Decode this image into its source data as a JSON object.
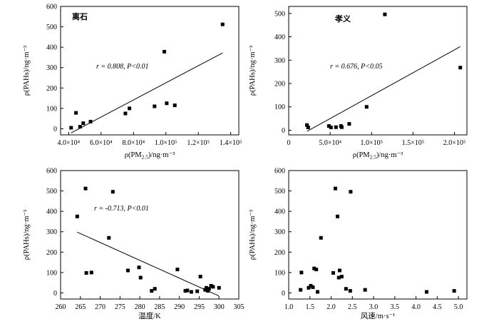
{
  "chart_data": [
    {
      "type": "scatter",
      "title": "离石",
      "xlabel": "ρ(PM2.5)/ng·m⁻³",
      "ylabel": "ρ(PAHs)/ng·m⁻³",
      "annotation": "r = 0.808, P<0.01",
      "xlim": [
        35000,
        145000
      ],
      "ylim": [
        -30,
        600
      ],
      "xticks": [
        40000,
        60000,
        80000,
        100000,
        120000,
        140000
      ],
      "xtick_labels": [
        "4.0×10⁴",
        "6.0×10⁴",
        "8.0×10⁴",
        "1.0×10⁵",
        "1.2×10⁵",
        "1.4×10⁵"
      ],
      "yticks": [
        0,
        100,
        200,
        300,
        400,
        500,
        600
      ],
      "ytick_labels": [
        "0",
        "100",
        "200",
        "300",
        "400",
        "500",
        "600"
      ],
      "points": [
        [
          41500,
          5
        ],
        [
          44500,
          78
        ],
        [
          47000,
          10
        ],
        [
          49000,
          27
        ],
        [
          53500,
          35
        ],
        [
          75000,
          75
        ],
        [
          77500,
          100
        ],
        [
          93000,
          110
        ],
        [
          99000,
          378
        ],
        [
          100500,
          125
        ],
        [
          105500,
          115
        ],
        [
          135000,
          512
        ]
      ],
      "trendline": [
        [
          41500,
          -20
        ],
        [
          135000,
          372
        ]
      ]
    },
    {
      "type": "scatter",
      "title": "孝义",
      "xlabel": "ρ(PM2.5)/ng·m⁻³",
      "ylabel": "ρ(PAHs)/ng·m⁻³",
      "annotation": "r = 0.676, P<0.05",
      "xlim": [
        0,
        215000
      ],
      "ylim": [
        -20,
        530
      ],
      "xticks": [
        0,
        50000,
        100000,
        150000,
        200000
      ],
      "xtick_labels": [
        "0",
        "5.0×10⁴",
        "1.0×10⁵",
        "1.5×10⁵",
        "2.0×10⁵"
      ],
      "yticks": [
        0,
        100,
        200,
        300,
        400,
        500
      ],
      "ytick_labels": [
        "0",
        "100",
        "200",
        "300",
        "400",
        "500"
      ],
      "points": [
        [
          22000,
          22
        ],
        [
          23500,
          12
        ],
        [
          48500,
          18
        ],
        [
          51000,
          12
        ],
        [
          57000,
          13
        ],
        [
          63000,
          18
        ],
        [
          64000,
          13
        ],
        [
          73000,
          27
        ],
        [
          94000,
          100
        ],
        [
          116000,
          496
        ],
        [
          207000,
          268
        ]
      ],
      "trendline": [
        [
          22000,
          -5
        ],
        [
          207000,
          358
        ]
      ]
    },
    {
      "type": "scatter",
      "title": "",
      "xlabel": "温度/K",
      "ylabel": "ρ(PAHs)/ng·m⁻³",
      "annotation": "r = -0.713, P<0.01",
      "xlim": [
        260,
        305
      ],
      "ylim": [
        -30,
        600
      ],
      "xticks": [
        260,
        265,
        270,
        275,
        280,
        285,
        290,
        295,
        300,
        305
      ],
      "xtick_labels": [
        "260",
        "265",
        "270",
        "275",
        "280",
        "285",
        "290",
        "295",
        "300",
        "305"
      ],
      "yticks": [
        0,
        100,
        200,
        300,
        400,
        500,
        600
      ],
      "ytick_labels": [
        "0",
        "100",
        "200",
        "300",
        "400",
        "500",
        "600"
      ],
      "points": [
        [
          264.2,
          375
        ],
        [
          266.3,
          512
        ],
        [
          266.5,
          98
        ],
        [
          267.8,
          100
        ],
        [
          272.2,
          270
        ],
        [
          273.2,
          496
        ],
        [
          277.0,
          110
        ],
        [
          279.8,
          125
        ],
        [
          280.2,
          75
        ],
        [
          283.0,
          10
        ],
        [
          283.8,
          20
        ],
        [
          289.5,
          115
        ],
        [
          291.5,
          10
        ],
        [
          292.0,
          12
        ],
        [
          293.0,
          5
        ],
        [
          294.5,
          8
        ],
        [
          295.3,
          80
        ],
        [
          296.5,
          15
        ],
        [
          296.8,
          25
        ],
        [
          297.2,
          10
        ],
        [
          297.5,
          20
        ],
        [
          298.0,
          35
        ],
        [
          298.5,
          30
        ],
        [
          300.0,
          25
        ]
      ],
      "trendline": [
        [
          264.2,
          298
        ],
        [
          300.0,
          -15
        ]
      ]
    },
    {
      "type": "scatter",
      "title": "",
      "xlabel": "风速/m·s⁻¹",
      "ylabel": "ρ(PAHs)/ng·m⁻³",
      "annotation": "",
      "xlim": [
        1.0,
        5.2
      ],
      "ylim": [
        -30,
        600
      ],
      "xticks": [
        1.0,
        1.5,
        2.0,
        2.5,
        3.0,
        3.5,
        4.0,
        4.5,
        5.0
      ],
      "xtick_labels": [
        "1.0",
        "1.5",
        "2.0",
        "2.5",
        "3.0",
        "3.5",
        "4.0",
        "4.5",
        "5.0"
      ],
      "yticks": [
        0,
        100,
        200,
        300,
        400,
        500,
        600
      ],
      "ytick_labels": [
        "0",
        "100",
        "200",
        "300",
        "400",
        "500",
        "600"
      ],
      "points": [
        [
          1.28,
          15
        ],
        [
          1.3,
          100
        ],
        [
          1.47,
          25
        ],
        [
          1.52,
          35
        ],
        [
          1.57,
          28
        ],
        [
          1.6,
          120
        ],
        [
          1.65,
          115
        ],
        [
          1.68,
          5
        ],
        [
          1.76,
          270
        ],
        [
          2.05,
          98
        ],
        [
          2.1,
          512
        ],
        [
          2.15,
          375
        ],
        [
          2.18,
          75
        ],
        [
          2.2,
          110
        ],
        [
          2.25,
          80
        ],
        [
          2.35,
          20
        ],
        [
          2.45,
          10
        ],
        [
          2.46,
          496
        ],
        [
          2.8,
          15
        ],
        [
          4.25,
          5
        ],
        [
          4.9,
          10
        ]
      ],
      "trendline": null
    }
  ]
}
